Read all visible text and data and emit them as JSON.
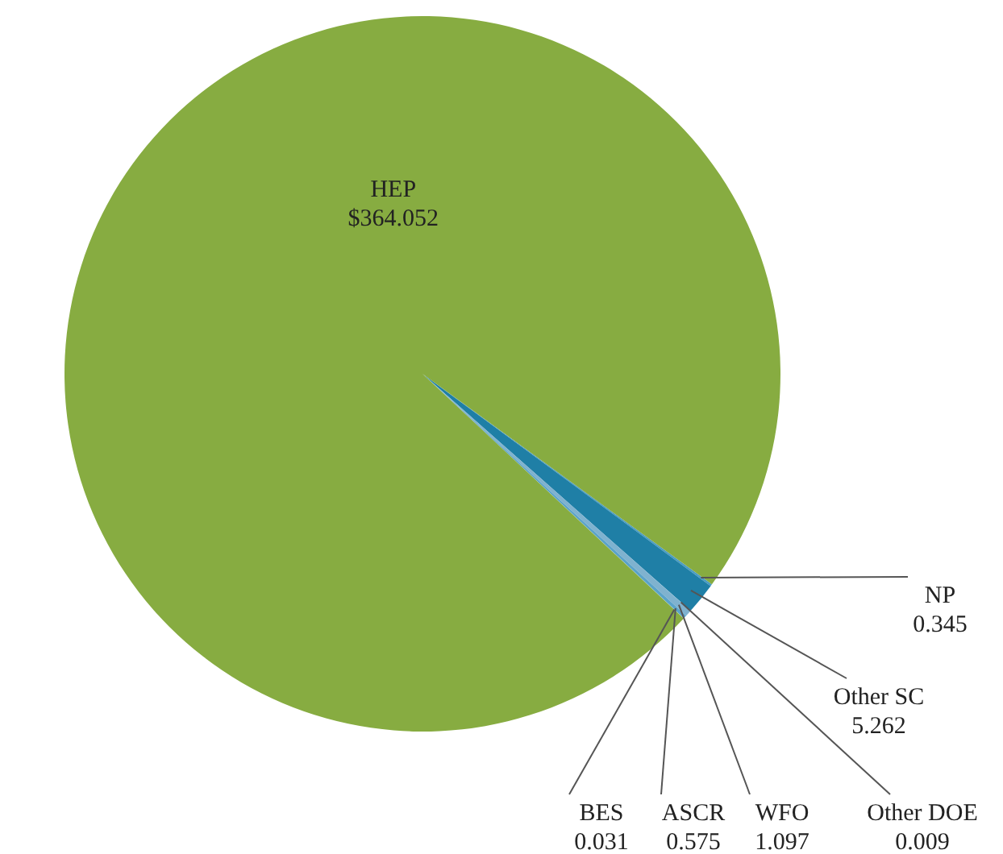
{
  "chart_data": {
    "type": "pie",
    "categories": [
      "NP",
      "Other SC",
      "Other DOE",
      "WFO",
      "ASCR",
      "BES",
      "HEP"
    ],
    "values": [
      0.345,
      5.262,
      0.009,
      1.097,
      0.575,
      0.031,
      364.052
    ],
    "value_labels": [
      "0.345",
      "5.262",
      "0.009",
      "1.097",
      "0.575",
      "0.031",
      "$364.052"
    ],
    "colors": [
      "#4a9cc4",
      "#1f7fa6",
      "#9fc3d8",
      "#7fb2cf",
      "#5aa3c9",
      "#b8d3e4",
      "#87ac41"
    ]
  }
}
